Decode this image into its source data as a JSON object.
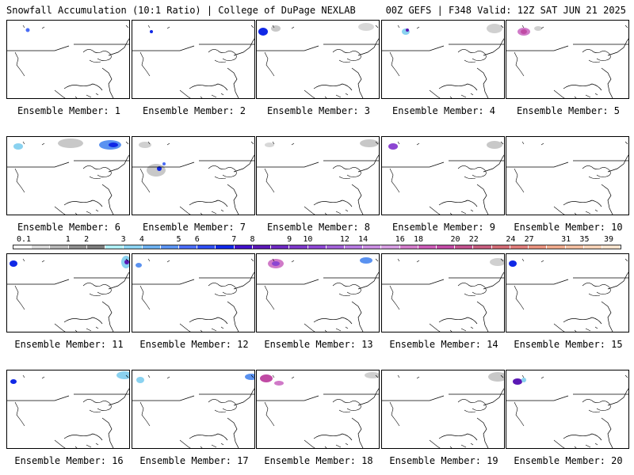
{
  "header": {
    "left": "Snowfall Accumulation (10:1 Ratio) | College of DuPage NEXLAB",
    "right": "00Z GEFS | F348 Valid: 12Z SAT JUN 21 2025"
  },
  "panels": [
    {
      "label": "Ensemble Member: 1"
    },
    {
      "label": "Ensemble Member: 2"
    },
    {
      "label": "Ensemble Member: 3"
    },
    {
      "label": "Ensemble Member: 4"
    },
    {
      "label": "Ensemble Member: 5"
    },
    {
      "label": "Ensemble Member: 6"
    },
    {
      "label": "Ensemble Member: 7"
    },
    {
      "label": "Ensemble Member: 8"
    },
    {
      "label": "Ensemble Member: 9"
    },
    {
      "label": "Ensemble Member: 10"
    },
    {
      "label": "Ensemble Member: 11"
    },
    {
      "label": "Ensemble Member: 12"
    },
    {
      "label": "Ensemble Member: 13"
    },
    {
      "label": "Ensemble Member: 14"
    },
    {
      "label": "Ensemble Member: 15"
    },
    {
      "label": "Ensemble Member: 16"
    },
    {
      "label": "Ensemble Member: 17"
    },
    {
      "label": "Ensemble Member: 18"
    },
    {
      "label": "Ensemble Member: 19"
    },
    {
      "label": "Ensemble Member: 20"
    }
  ],
  "scale": {
    "ticks": [
      "0.1",
      "1",
      "2",
      "3",
      "4",
      "5",
      "6",
      "7",
      "8",
      "9",
      "10",
      "12",
      "14",
      "16",
      "18",
      "20",
      "22",
      "24",
      "27",
      "31",
      "35",
      "39"
    ],
    "colors": [
      "#f4f4f4",
      "#d6d6d6",
      "#b4b4b4",
      "#8c8c8c",
      "#7a7a7a",
      "#aeeef4",
      "#8ad2f0",
      "#6cb0ee",
      "#5a92f0",
      "#4a6cf4",
      "#2e4ef0",
      "#1028e6",
      "#4010c8",
      "#5a18b4",
      "#6c28c0",
      "#7c38c8",
      "#8c46d2",
      "#a060d6",
      "#b478de",
      "#c88ce0",
      "#d49ce0",
      "#d07ac8",
      "#c85ab4",
      "#c04aa4",
      "#c0508c",
      "#c45c7c",
      "#d06a74",
      "#dc7a78",
      "#e6907c",
      "#eca88a",
      "#f0bc9e",
      "#f4d0b4",
      "#f8e2cc"
    ]
  }
}
